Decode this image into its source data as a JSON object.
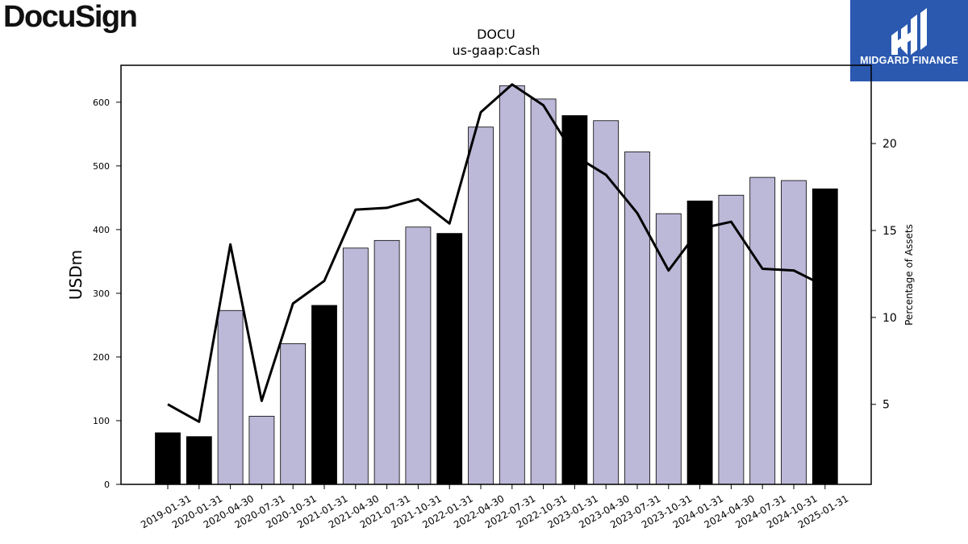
{
  "logos": {
    "company": "DocuSign",
    "publisher": "MIDGARD FINANCE"
  },
  "colors": {
    "bar_highlight": "#000000",
    "bar_normal": "#bcb8d8",
    "line": "#000000",
    "publisher_bg": "#2b59b0"
  },
  "chart_data": {
    "type": "bar",
    "title": "DOCU",
    "subtitle": "us-gaap:Cash",
    "ylabel": "USDm",
    "ylabel_right": "Percentage of Assets",
    "ylim": [
      0,
      658
    ],
    "ylim_right": [
      0.4,
      24.5
    ],
    "yticks": [
      0,
      100,
      200,
      300,
      400,
      500,
      600
    ],
    "yticks_right": [
      5,
      10,
      15,
      20
    ],
    "grid": false,
    "categories": [
      "2019-01-31",
      "2020-01-31",
      "2020-04-30",
      "2020-07-31",
      "2020-10-31",
      "2021-01-31",
      "2021-04-30",
      "2021-07-31",
      "2021-10-31",
      "2022-01-31",
      "2022-04-30",
      "2022-07-31",
      "2022-10-31",
      "2023-01-31",
      "2023-04-30",
      "2023-07-31",
      "2023-10-31",
      "2024-01-31",
      "2024-04-30",
      "2024-07-31",
      "2024-10-31",
      "2025-01-31"
    ],
    "series": [
      {
        "kind": "bar",
        "axis": "left",
        "values": [
          81,
          75,
          273,
          107,
          221,
          281,
          371,
          383,
          404,
          394,
          561,
          626,
          605,
          579,
          571,
          522,
          425,
          445,
          454,
          482,
          477,
          464
        ],
        "fiscal_year_end": [
          true,
          true,
          false,
          false,
          false,
          true,
          false,
          false,
          false,
          true,
          false,
          false,
          false,
          true,
          false,
          false,
          false,
          true,
          false,
          false,
          false,
          true
        ]
      },
      {
        "kind": "line",
        "axis": "right",
        "values": [
          5.0,
          4.0,
          14.2,
          5.2,
          10.8,
          12.1,
          16.2,
          16.3,
          16.8,
          15.4,
          21.8,
          23.4,
          22.2,
          19.3,
          18.2,
          16.0,
          12.7,
          15.1,
          15.5,
          12.8,
          12.7,
          11.8
        ]
      }
    ]
  }
}
